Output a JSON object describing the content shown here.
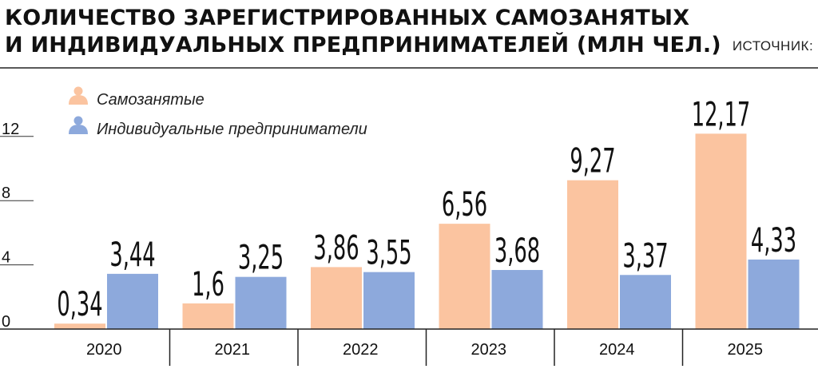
{
  "header": {
    "title_line1": "КОЛИЧЕСТВО ЗАРЕГИСТРИРОВАННЫХ САМОЗАНЯТЫХ",
    "title_line2": "И ИНДИВИДУАЛЬНЫХ ПРЕДПРИНИМАТЕЛЕЙ (МЛН ЧЕЛ.)",
    "source": "ИСТОЧНИК: ФНС."
  },
  "legend": {
    "items": [
      {
        "label": "Самозанятые",
        "icon": "person-icon"
      },
      {
        "label": "Индивидуальные предприниматели",
        "icon": "person-icon"
      }
    ]
  },
  "colors": {
    "series0": "#FBC4A0",
    "series1": "#8DA9DC"
  },
  "chart_data": {
    "type": "bar",
    "title": "КОЛИЧЕСТВО ЗАРЕГИСТРИРОВАННЫХ САМОЗАНЯТЫХ И ИНДИВИДУАЛЬНЫХ ПРЕДПРИНИМАТЕЛЕЙ (МЛН ЧЕЛ.)",
    "categories": [
      "2020",
      "2021",
      "2022",
      "2023",
      "2024",
      "2025"
    ],
    "series": [
      {
        "name": "Самозанятые",
        "values": [
          0.34,
          1.6,
          3.86,
          6.56,
          9.27,
          12.17
        ],
        "labels": [
          "0,34",
          "1,6",
          "3,86",
          "6,56",
          "9,27",
          "12,17"
        ]
      },
      {
        "name": "Индивидуальные предприниматели",
        "values": [
          3.44,
          3.25,
          3.55,
          3.68,
          3.37,
          4.33
        ],
        "labels": [
          "3,44",
          "3,25",
          "3,55",
          "3,68",
          "3,37",
          "4,33"
        ]
      }
    ],
    "yticks": [
      0,
      4,
      8,
      12
    ],
    "ytick_labels": [
      "0",
      "4",
      "8",
      "12"
    ],
    "ylim": [
      0,
      14
    ],
    "grid": false,
    "legend_position": "top-left"
  }
}
